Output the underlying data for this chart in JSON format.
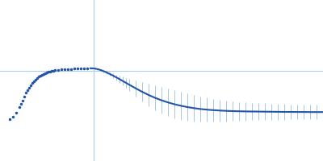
{
  "background_color": "#ffffff",
  "line_color": "#2255aa",
  "error_color": "#99bbdd",
  "dot_color": "#2255aa",
  "hline_color": "#aaccee",
  "vline_color": "#aaccee",
  "figsize": [
    4.0,
    2.0
  ],
  "dpi": 100,
  "xlim": [
    0.0,
    1.0
  ],
  "ylim": [
    -0.5,
    1.5
  ],
  "hline_y": 0.62,
  "vline_x": 0.29,
  "dot_q": [
    0.03,
    0.04,
    0.05,
    0.06,
    0.065,
    0.07,
    0.075,
    0.08,
    0.085,
    0.09,
    0.095,
    0.1,
    0.105,
    0.11,
    0.115,
    0.12,
    0.125,
    0.13,
    0.135,
    0.14,
    0.145,
    0.15,
    0.155,
    0.16,
    0.165,
    0.17,
    0.18,
    0.19,
    0.2,
    0.21,
    0.22,
    0.23,
    0.24,
    0.25,
    0.26,
    0.27
  ],
  "dot_iq2": [
    0.02,
    0.05,
    0.1,
    0.17,
    0.21,
    0.25,
    0.3,
    0.35,
    0.38,
    0.41,
    0.44,
    0.47,
    0.49,
    0.51,
    0.53,
    0.55,
    0.565,
    0.575,
    0.585,
    0.595,
    0.6,
    0.61,
    0.615,
    0.62,
    0.625,
    0.63,
    0.635,
    0.638,
    0.64,
    0.642,
    0.644,
    0.646,
    0.648,
    0.65,
    0.651,
    0.652
  ],
  "curve_q": [
    0.28,
    0.285,
    0.29,
    0.295,
    0.3,
    0.305,
    0.31,
    0.315,
    0.32,
    0.33,
    0.34,
    0.35,
    0.36,
    0.37,
    0.38,
    0.39,
    0.4,
    0.42,
    0.44,
    0.46,
    0.48,
    0.5,
    0.52,
    0.54,
    0.56,
    0.58,
    0.6,
    0.62,
    0.64,
    0.66,
    0.68,
    0.7,
    0.72,
    0.74,
    0.76,
    0.78,
    0.8,
    0.82,
    0.84,
    0.86,
    0.88,
    0.9,
    0.92,
    0.94,
    0.96,
    0.98,
    1.0
  ],
  "curve_iq2": [
    0.652,
    0.651,
    0.65,
    0.647,
    0.643,
    0.638,
    0.632,
    0.625,
    0.617,
    0.6,
    0.581,
    0.561,
    0.539,
    0.517,
    0.494,
    0.471,
    0.448,
    0.403,
    0.36,
    0.32,
    0.285,
    0.254,
    0.228,
    0.205,
    0.186,
    0.17,
    0.157,
    0.146,
    0.138,
    0.132,
    0.127,
    0.123,
    0.12,
    0.118,
    0.116,
    0.115,
    0.114,
    0.113,
    0.112,
    0.111,
    0.11,
    0.11,
    0.109,
    0.109,
    0.108,
    0.108,
    0.108
  ],
  "curve_err": [
    0.01,
    0.01,
    0.01,
    0.01,
    0.012,
    0.012,
    0.013,
    0.014,
    0.015,
    0.018,
    0.022,
    0.028,
    0.035,
    0.043,
    0.053,
    0.064,
    0.076,
    0.1,
    0.12,
    0.14,
    0.155,
    0.165,
    0.17,
    0.172,
    0.172,
    0.17,
    0.165,
    0.158,
    0.15,
    0.143,
    0.135,
    0.128,
    0.122,
    0.117,
    0.113,
    0.109,
    0.106,
    0.103,
    0.1,
    0.098,
    0.096,
    0.094,
    0.092,
    0.091,
    0.09,
    0.089,
    0.088
  ]
}
